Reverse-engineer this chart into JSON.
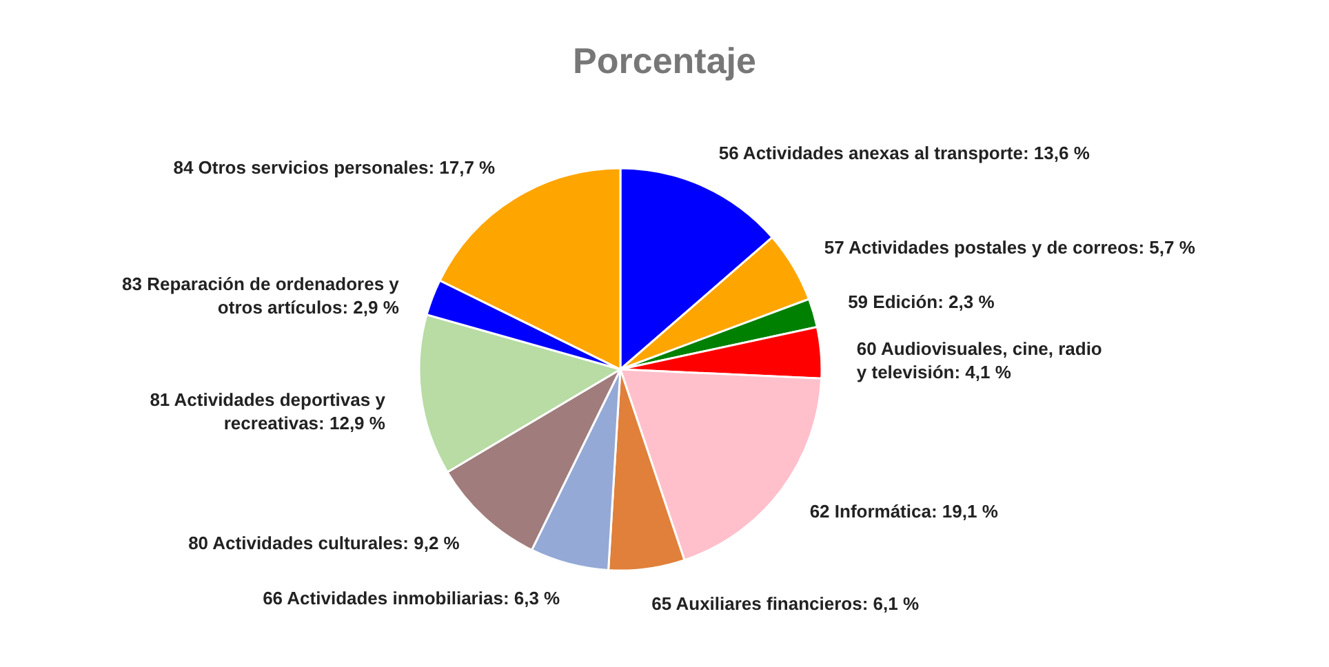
{
  "chart_data": {
    "type": "pie",
    "title": "Porcentaje",
    "categories": [
      "56 Actividades anexas al transporte",
      "57 Actividades postales y de correos",
      "59 Edición",
      "60 Audiovisuales, cine, radio y televisión",
      "62 Informática",
      "65 Auxiliares financieros",
      "66 Actividades inmobiliarias",
      "80 Actividades culturales",
      "81 Actividades deportivas y recreativas",
      "83 Reparación de ordenadores y otros artículos",
      "84 Otros servicios personales"
    ],
    "values": [
      13.6,
      5.7,
      2.3,
      4.1,
      19.1,
      6.1,
      6.3,
      9.2,
      12.9,
      2.9,
      17.7
    ],
    "value_labels": [
      "13,6 %",
      "5,7 %",
      "2,3 %",
      "4,1 %",
      "19,1 %",
      "6,1 %",
      "6,3 %",
      "9,2 %",
      "12,9 %",
      "2,9 %",
      "17,7 %"
    ],
    "colors": [
      "#0000ff",
      "#ffa500",
      "#008000",
      "#ff0000",
      "#ffc0cb",
      "#e0803a",
      "#94a9d6",
      "#a07c7c",
      "#b8dca4",
      "#0000ff",
      "#ffa500"
    ],
    "legend": false
  }
}
